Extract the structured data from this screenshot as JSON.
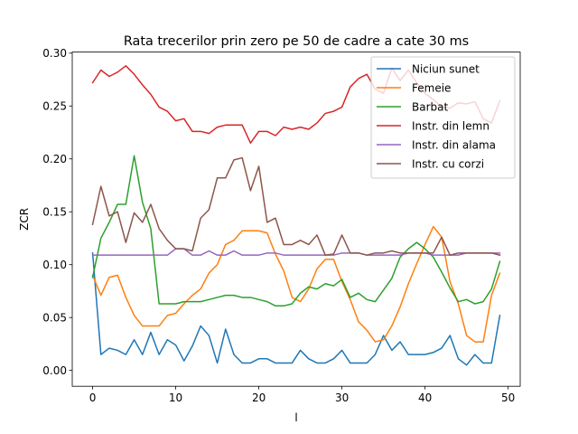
{
  "chart_data": {
    "type": "line",
    "title": "Rata trecerilor prin zero pe 50 de cadre a cate 30 ms",
    "xlabel": "l",
    "ylabel": "ZCR",
    "xlim": [
      -2.45,
      51.45
    ],
    "ylim": [
      -0.015,
      0.301
    ],
    "x_ticks": [
      0,
      10,
      20,
      30,
      40,
      50
    ],
    "x_tick_labels": [
      "0",
      "10",
      "20",
      "30",
      "40",
      "50"
    ],
    "y_ticks": [
      0.0,
      0.05,
      0.1,
      0.15,
      0.2,
      0.25,
      0.3
    ],
    "y_tick_labels": [
      "0.00",
      "0.05",
      "0.10",
      "0.15",
      "0.20",
      "0.25",
      "0.30"
    ],
    "grid": false,
    "legend_position": "top-right",
    "x": [
      0,
      1,
      2,
      3,
      4,
      5,
      6,
      7,
      8,
      9,
      10,
      11,
      12,
      13,
      14,
      15,
      16,
      17,
      18,
      19,
      20,
      21,
      22,
      23,
      24,
      25,
      26,
      27,
      28,
      29,
      30,
      31,
      32,
      33,
      34,
      35,
      36,
      37,
      38,
      39,
      40,
      41,
      42,
      43,
      44,
      45,
      46,
      47,
      48,
      49
    ],
    "series": [
      {
        "name": "Niciun sunet",
        "color": "#1f77b4",
        "values": [
          0.111,
          0.015,
          0.021,
          0.019,
          0.015,
          0.029,
          0.015,
          0.036,
          0.015,
          0.029,
          0.024,
          0.009,
          0.023,
          0.042,
          0.033,
          0.007,
          0.039,
          0.015,
          0.007,
          0.007,
          0.011,
          0.011,
          0.007,
          0.007,
          0.007,
          0.019,
          0.011,
          0.007,
          0.007,
          0.011,
          0.019,
          0.007,
          0.007,
          0.007,
          0.015,
          0.033,
          0.019,
          0.027,
          0.015,
          0.015,
          0.015,
          0.017,
          0.021,
          0.033,
          0.011,
          0.005,
          0.015,
          0.007,
          0.007,
          0.052
        ]
      },
      {
        "name": "Femeie",
        "color": "#ff7f0e",
        "values": [
          0.09,
          0.071,
          0.088,
          0.09,
          0.069,
          0.052,
          0.042,
          0.042,
          0.042,
          0.052,
          0.054,
          0.063,
          0.071,
          0.077,
          0.092,
          0.1,
          0.119,
          0.123,
          0.132,
          0.132,
          0.132,
          0.13,
          0.11,
          0.094,
          0.069,
          0.065,
          0.077,
          0.096,
          0.105,
          0.105,
          0.084,
          0.067,
          0.046,
          0.038,
          0.027,
          0.029,
          0.042,
          0.06,
          0.082,
          0.101,
          0.119,
          0.136,
          0.126,
          0.084,
          0.063,
          0.033,
          0.027,
          0.027,
          0.071,
          0.092
        ]
      },
      {
        "name": "Barbat",
        "color": "#2ca02c",
        "values": [
          0.088,
          0.125,
          0.14,
          0.157,
          0.157,
          0.203,
          0.159,
          0.134,
          0.063,
          0.063,
          0.063,
          0.065,
          0.065,
          0.065,
          0.067,
          0.069,
          0.071,
          0.071,
          0.069,
          0.069,
          0.067,
          0.065,
          0.061,
          0.061,
          0.063,
          0.073,
          0.079,
          0.077,
          0.082,
          0.08,
          0.086,
          0.069,
          0.073,
          0.067,
          0.065,
          0.076,
          0.087,
          0.107,
          0.115,
          0.121,
          0.115,
          0.107,
          0.093,
          0.078,
          0.065,
          0.067,
          0.063,
          0.065,
          0.077,
          0.103
        ]
      },
      {
        "name": "Instr. din lemn",
        "color": "#d62728",
        "values": [
          0.272,
          0.284,
          0.278,
          0.282,
          0.288,
          0.28,
          0.27,
          0.261,
          0.249,
          0.245,
          0.236,
          0.238,
          0.226,
          0.226,
          0.224,
          0.23,
          0.232,
          0.232,
          0.232,
          0.215,
          0.226,
          0.226,
          0.222,
          0.23,
          0.228,
          0.23,
          0.228,
          0.234,
          0.243,
          0.245,
          0.249,
          0.268,
          0.276,
          0.28,
          0.266,
          0.262,
          0.286,
          0.274,
          0.284,
          0.272,
          0.262,
          0.256,
          0.249,
          0.248,
          0.253,
          0.252,
          0.254,
          0.238,
          0.234,
          0.255
        ]
      },
      {
        "name": "Instr. din alama",
        "color": "#9467bd",
        "values": [
          0.109,
          0.109,
          0.109,
          0.109,
          0.109,
          0.109,
          0.109,
          0.109,
          0.109,
          0.109,
          0.115,
          0.115,
          0.109,
          0.109,
          0.113,
          0.109,
          0.109,
          0.113,
          0.109,
          0.109,
          0.109,
          0.111,
          0.111,
          0.109,
          0.109,
          0.109,
          0.109,
          0.109,
          0.109,
          0.109,
          0.111,
          0.111,
          0.111,
          0.109,
          0.109,
          0.109,
          0.109,
          0.109,
          0.111,
          0.111,
          0.111,
          0.109,
          0.109,
          0.109,
          0.109,
          0.111,
          0.111,
          0.111,
          0.111,
          0.111
        ]
      },
      {
        "name": "Instr. cu corzi",
        "color": "#8c564b",
        "values": [
          0.138,
          0.174,
          0.146,
          0.15,
          0.121,
          0.149,
          0.14,
          0.157,
          0.134,
          0.123,
          0.115,
          0.115,
          0.113,
          0.144,
          0.152,
          0.182,
          0.182,
          0.199,
          0.201,
          0.17,
          0.193,
          0.14,
          0.144,
          0.119,
          0.119,
          0.123,
          0.119,
          0.128,
          0.109,
          0.11,
          0.128,
          0.111,
          0.111,
          0.109,
          0.111,
          0.111,
          0.113,
          0.111,
          0.111,
          0.111,
          0.111,
          0.111,
          0.126,
          0.109,
          0.111,
          0.111,
          0.111,
          0.111,
          0.111,
          0.109
        ]
      }
    ]
  }
}
